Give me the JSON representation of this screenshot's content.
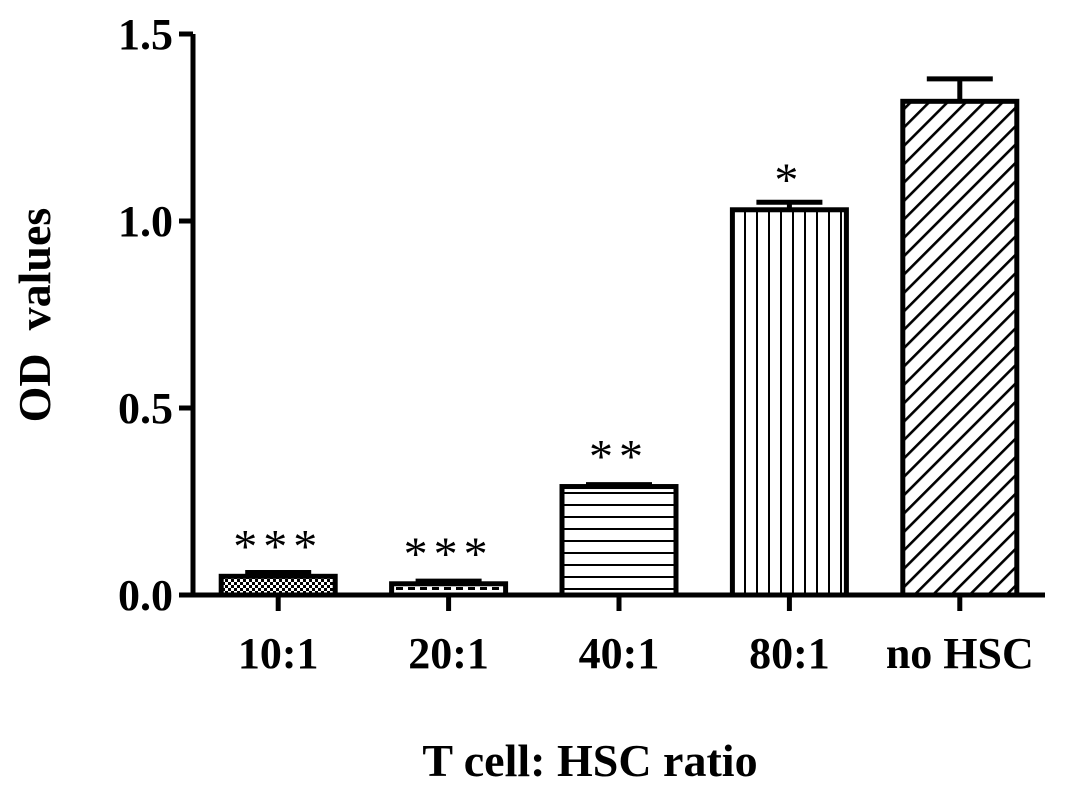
{
  "chart_data": {
    "type": "bar",
    "categories": [
      "10:1",
      "20:1",
      "40:1",
      "80:1",
      "no HSC"
    ],
    "values": [
      0.05,
      0.03,
      0.29,
      1.03,
      1.32
    ],
    "errors": [
      0.01,
      0.007,
      0.005,
      0.02,
      0.06
    ],
    "significance": [
      "***",
      "***",
      "**",
      "*",
      ""
    ],
    "patterns": [
      "checker",
      "dashes",
      "horizontal",
      "vertical",
      "diagonal"
    ],
    "xlabel": "T cell: HSC ratio",
    "ylabel": "OD  values",
    "ylim": [
      0,
      1.5
    ],
    "yticks": [
      "0.0",
      "0.5",
      "1.0",
      "1.5"
    ],
    "ytick_values": [
      0,
      0.5,
      1.0,
      1.5
    ],
    "grid": false,
    "bar_color": "#ffffff",
    "line_color": "#000000"
  }
}
